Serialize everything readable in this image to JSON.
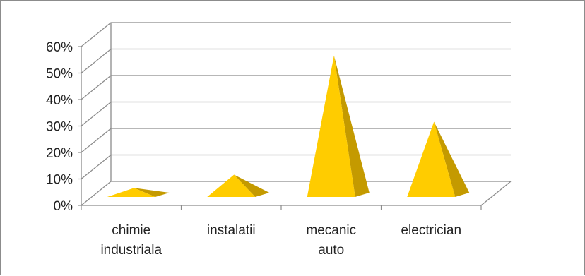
{
  "chart_data": {
    "type": "bar",
    "bar_shape": "pyramid-3d",
    "categories": [
      [
        "chimie",
        "industriala"
      ],
      [
        "instalatii"
      ],
      [
        "mecanic",
        "auto"
      ],
      [
        "electrician"
      ]
    ],
    "values": [
      5,
      10,
      55,
      30
    ],
    "y_tick_labels": [
      "0%",
      "10%",
      "20%",
      "30%",
      "40%",
      "50%",
      "60%"
    ],
    "ylim": [
      0,
      60
    ],
    "grid": true,
    "legend": "none",
    "colors": {
      "face": "#FFCC00",
      "side": "#C49A00",
      "grid": "#8c8c8c"
    }
  }
}
